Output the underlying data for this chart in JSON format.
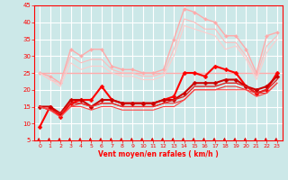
{
  "background_color": "#cce8e8",
  "grid_color": "#ffffff",
  "xlabel": "Vent moyen/en rafales ( km/h )",
  "xlabel_color": "#ff0000",
  "tick_color": "#ff0000",
  "xlim": [
    -0.5,
    23.5
  ],
  "ylim": [
    5,
    45
  ],
  "yticks": [
    5,
    10,
    15,
    20,
    25,
    30,
    35,
    40,
    45
  ],
  "xticks": [
    0,
    1,
    2,
    3,
    4,
    5,
    6,
    7,
    8,
    9,
    10,
    11,
    12,
    13,
    14,
    15,
    16,
    17,
    18,
    19,
    20,
    21,
    22,
    23
  ],
  "lines": [
    {
      "x": [
        0,
        1,
        2,
        3,
        4,
        5,
        6,
        7,
        8,
        9,
        10,
        11,
        12,
        13,
        14,
        15,
        16,
        17,
        18,
        19,
        20,
        21,
        22,
        23
      ],
      "y": [
        25,
        25,
        25,
        25,
        25,
        25,
        25,
        25,
        25,
        25,
        25,
        25,
        25,
        25,
        25,
        25,
        25,
        25,
        25,
        25,
        25,
        25,
        25,
        25
      ],
      "color": "#ffaaaa",
      "linewidth": 1.0,
      "marker": null,
      "markersize": 0
    },
    {
      "x": [
        0,
        1,
        2,
        3,
        4,
        5,
        6,
        7,
        8,
        9,
        10,
        11,
        12,
        13,
        14,
        15,
        16,
        17,
        18,
        19,
        20,
        21,
        22,
        23
      ],
      "y": [
        25,
        24,
        22,
        32,
        30,
        32,
        32,
        27,
        26,
        26,
        25,
        25,
        26,
        35,
        44,
        43,
        41,
        40,
        36,
        36,
        32,
        25,
        36,
        37
      ],
      "color": "#ffaaaa",
      "linewidth": 1.0,
      "marker": "D",
      "markersize": 2.0
    },
    {
      "x": [
        0,
        1,
        2,
        3,
        4,
        5,
        6,
        7,
        8,
        9,
        10,
        11,
        12,
        13,
        14,
        15,
        16,
        17,
        18,
        19,
        20,
        21,
        22,
        23
      ],
      "y": [
        25,
        23,
        22,
        30,
        28,
        29,
        29,
        26,
        25,
        25,
        24,
        24,
        25,
        32,
        41,
        40,
        38,
        38,
        34,
        34,
        30,
        24,
        33,
        36
      ],
      "color": "#ffbbbb",
      "linewidth": 0.8,
      "marker": null,
      "markersize": 0
    },
    {
      "x": [
        0,
        1,
        2,
        3,
        4,
        5,
        6,
        7,
        8,
        9,
        10,
        11,
        12,
        13,
        14,
        15,
        16,
        17,
        18,
        19,
        20,
        21,
        22,
        23
      ],
      "y": [
        25,
        23,
        21,
        28,
        26,
        27,
        27,
        25,
        24,
        24,
        23,
        23,
        24,
        30,
        39,
        38,
        37,
        36,
        32,
        33,
        29,
        23,
        31,
        35
      ],
      "color": "#ffcccc",
      "linewidth": 0.8,
      "marker": null,
      "markersize": 0
    },
    {
      "x": [
        0,
        1,
        2,
        3,
        4,
        5,
        6,
        7,
        8,
        9,
        10,
        11,
        12,
        13,
        14,
        15,
        16,
        17,
        18,
        19,
        20,
        21,
        22,
        23
      ],
      "y": [
        9,
        15,
        12,
        16,
        17,
        17,
        21,
        17,
        16,
        16,
        16,
        16,
        17,
        18,
        25,
        25,
        24,
        27,
        26,
        25,
        21,
        19,
        20,
        25
      ],
      "color": "#ff0000",
      "linewidth": 1.5,
      "marker": "D",
      "markersize": 2.5
    },
    {
      "x": [
        0,
        1,
        2,
        3,
        4,
        5,
        6,
        7,
        8,
        9,
        10,
        11,
        12,
        13,
        14,
        15,
        16,
        17,
        18,
        19,
        20,
        21,
        22,
        23
      ],
      "y": [
        15,
        15,
        13,
        17,
        17,
        15,
        17,
        17,
        16,
        16,
        16,
        16,
        17,
        17,
        19,
        22,
        22,
        22,
        23,
        23,
        21,
        20,
        21,
        24
      ],
      "color": "#cc0000",
      "linewidth": 1.5,
      "marker": "D",
      "markersize": 2.5
    },
    {
      "x": [
        0,
        1,
        2,
        3,
        4,
        5,
        6,
        7,
        8,
        9,
        10,
        11,
        12,
        13,
        14,
        15,
        16,
        17,
        18,
        19,
        20,
        21,
        22,
        23
      ],
      "y": [
        15,
        14,
        13,
        16,
        16,
        15,
        16,
        16,
        15,
        15,
        15,
        15,
        16,
        17,
        18,
        21,
        21,
        21,
        22,
        22,
        21,
        19,
        20,
        23
      ],
      "color": "#dd2222",
      "linewidth": 1.0,
      "marker": null,
      "markersize": 0
    },
    {
      "x": [
        0,
        1,
        2,
        3,
        4,
        5,
        6,
        7,
        8,
        9,
        10,
        11,
        12,
        13,
        14,
        15,
        16,
        17,
        18,
        19,
        20,
        21,
        22,
        23
      ],
      "y": [
        15,
        14,
        12,
        15,
        16,
        15,
        16,
        16,
        15,
        15,
        15,
        15,
        16,
        16,
        17,
        20,
        20,
        20,
        21,
        21,
        20,
        19,
        19,
        22
      ],
      "color": "#ee3333",
      "linewidth": 0.8,
      "marker": null,
      "markersize": 0
    },
    {
      "x": [
        0,
        1,
        2,
        3,
        4,
        5,
        6,
        7,
        8,
        9,
        10,
        11,
        12,
        13,
        14,
        15,
        16,
        17,
        18,
        19,
        20,
        21,
        22,
        23
      ],
      "y": [
        15,
        14,
        12,
        15,
        15,
        14,
        15,
        15,
        14,
        14,
        14,
        14,
        15,
        15,
        17,
        20,
        20,
        20,
        20,
        20,
        20,
        18,
        19,
        22
      ],
      "color": "#ff4444",
      "linewidth": 0.8,
      "marker": null,
      "markersize": 0
    }
  ],
  "wind_arrow_color": "#dd0000"
}
